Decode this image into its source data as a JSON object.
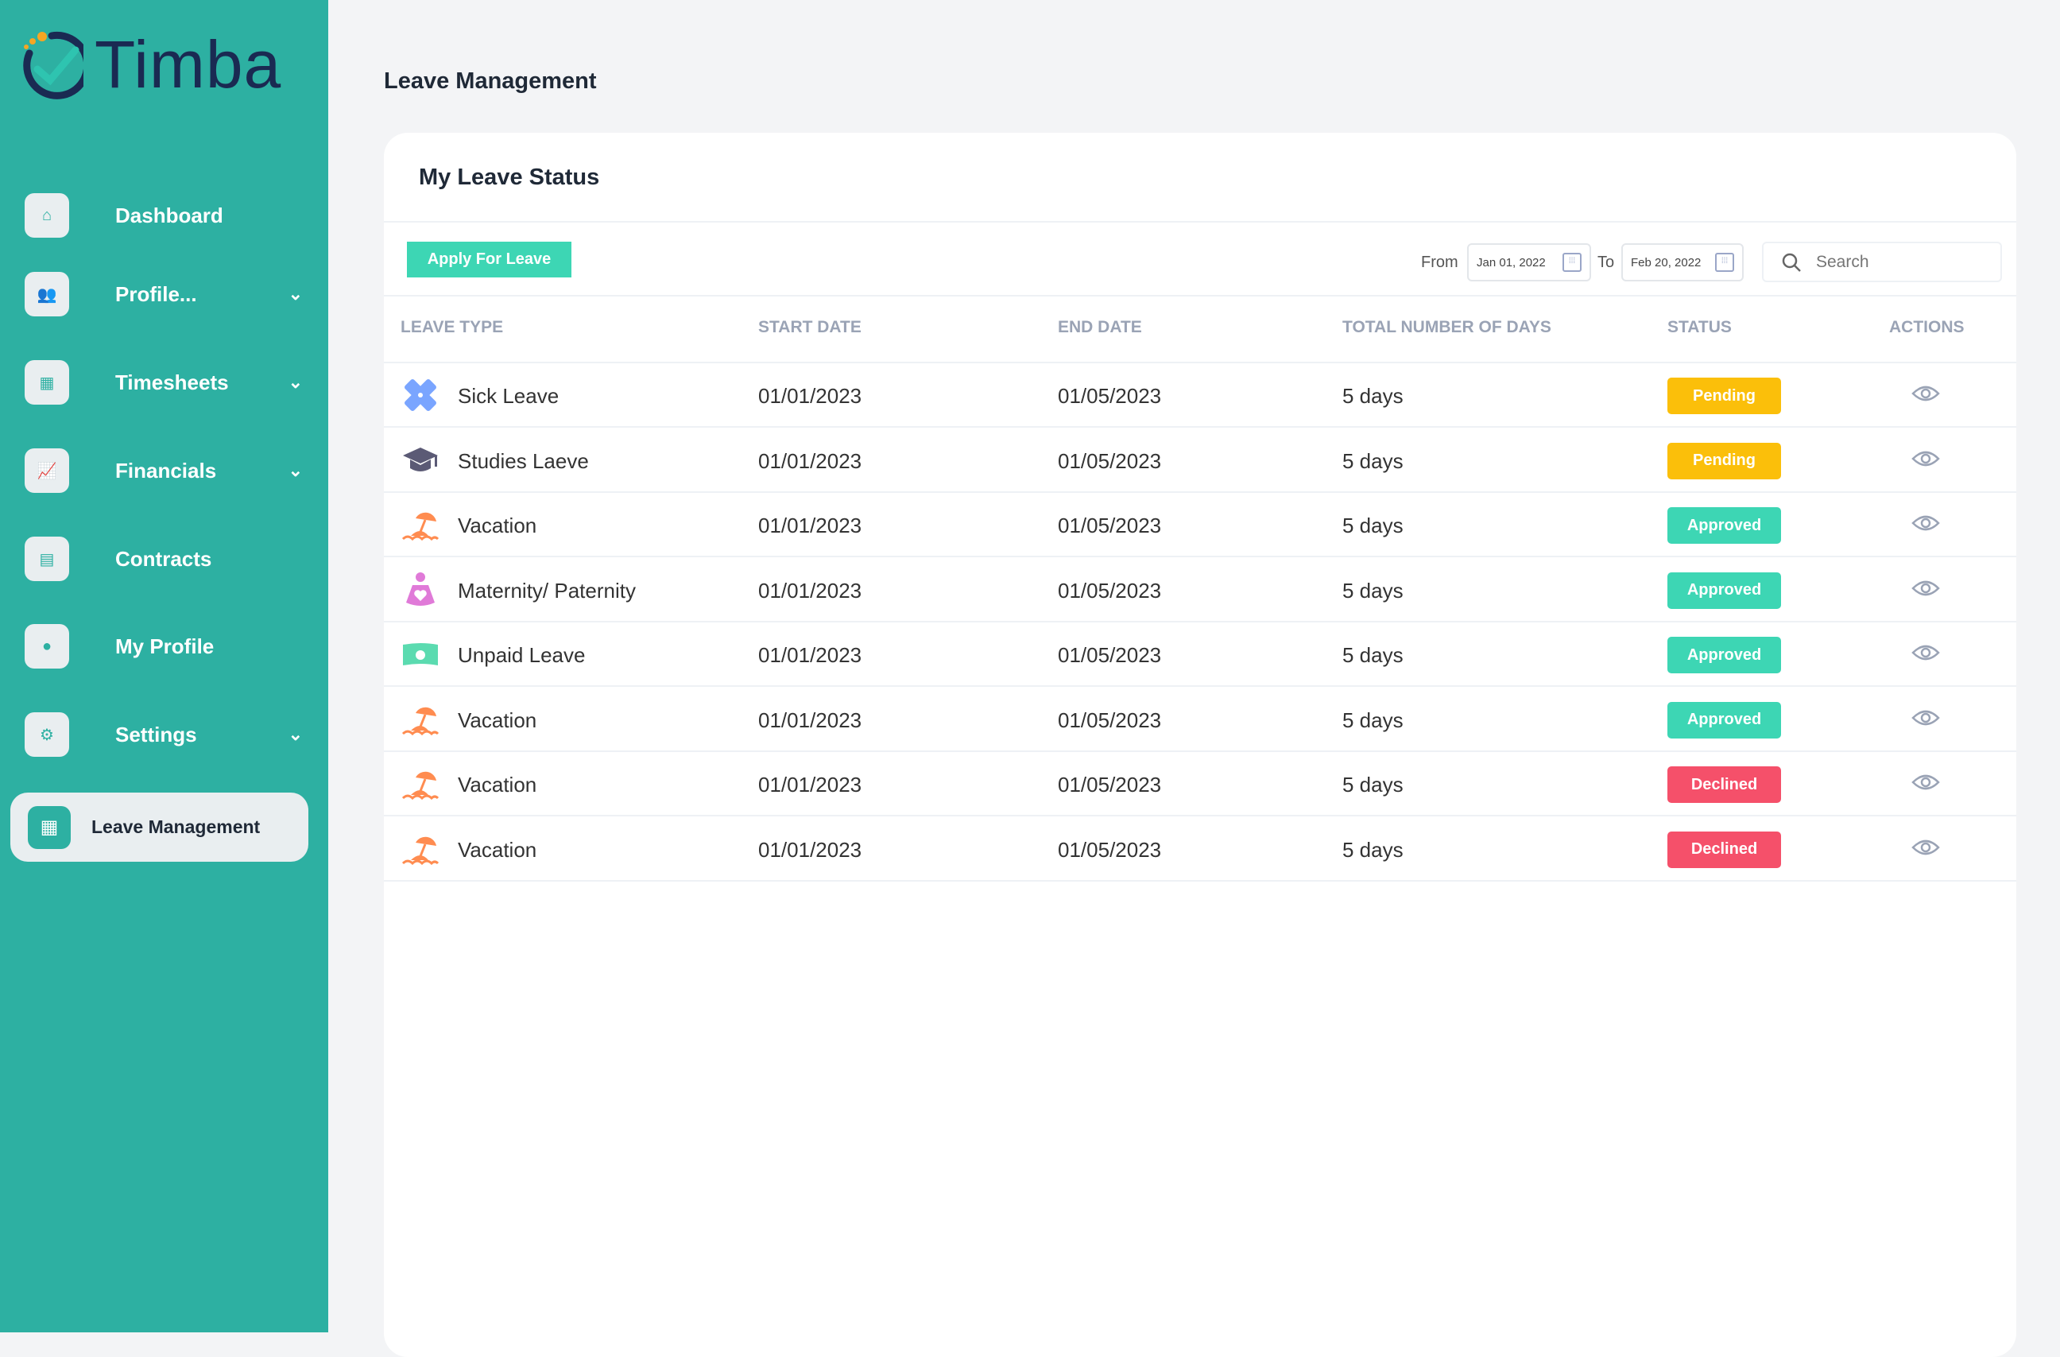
{
  "brand": {
    "name": "Timba"
  },
  "sidebar": {
    "items": [
      {
        "label": "Dashboard",
        "icon": "home-icon",
        "chevron": false
      },
      {
        "label": "Profile...",
        "icon": "users-icon",
        "chevron": true
      },
      {
        "label": "Timesheets",
        "icon": "calendar-icon",
        "chevron": true
      },
      {
        "label": "Financials",
        "icon": "chart-icon",
        "chevron": true
      },
      {
        "label": "Contracts",
        "icon": "document-icon",
        "chevron": false
      },
      {
        "label": "My Profile",
        "icon": "user-icon",
        "chevron": false
      },
      {
        "label": "Settings",
        "icon": "gear-icon",
        "chevron": true
      }
    ],
    "active": {
      "label": "Leave Management",
      "icon": "calendar-icon"
    }
  },
  "page": {
    "title": "Leave Management"
  },
  "card": {
    "title": "My Leave Status",
    "apply_label": "Apply For Leave",
    "from_label": "From",
    "from_value": "Jan 01, 2022",
    "to_label": "To",
    "to_value": "Feb 20, 2022",
    "search_placeholder": "Search"
  },
  "table": {
    "headers": [
      "LEAVE TYPE",
      "START DATE",
      "END DATE",
      "TOTAL NUMBER OF DAYS",
      "STATUS",
      "ACTIONS"
    ],
    "rows": [
      {
        "type": "Sick Leave",
        "icon": "bandage-icon",
        "start": "01/01/2023",
        "end": "01/05/2023",
        "days": "5 days",
        "status": "Pending"
      },
      {
        "type": "Studies Laeve",
        "icon": "graduation-cap-icon",
        "start": "01/01/2023",
        "end": "01/05/2023",
        "days": "5 days",
        "status": "Pending"
      },
      {
        "type": "Vacation",
        "icon": "beach-umbrella-icon",
        "start": "01/01/2023",
        "end": "01/05/2023",
        "days": "5 days",
        "status": "Approved"
      },
      {
        "type": "Maternity/ Paternity",
        "icon": "maternity-icon",
        "start": "01/01/2023",
        "end": "01/05/2023",
        "days": "5 days",
        "status": "Approved"
      },
      {
        "type": "Unpaid Leave",
        "icon": "money-icon",
        "start": "01/01/2023",
        "end": "01/05/2023",
        "days": "5 days",
        "status": "Approved"
      },
      {
        "type": "Vacation",
        "icon": "beach-umbrella-icon",
        "start": "01/01/2023",
        "end": "01/05/2023",
        "days": "5 days",
        "status": "Approved"
      },
      {
        "type": "Vacation",
        "icon": "beach-umbrella-icon",
        "start": "01/01/2023",
        "end": "01/05/2023",
        "days": "5 days",
        "status": "Declined"
      },
      {
        "type": "Vacation",
        "icon": "beach-umbrella-icon",
        "start": "01/01/2023",
        "end": "01/05/2023",
        "days": "5 days",
        "status": "Declined"
      }
    ]
  },
  "colors": {
    "sidebar": "#2db0a2",
    "pending": "#fbbf0a",
    "approved": "#3dd6b4",
    "declined": "#f5506a",
    "brand_dark": "#1a2a52"
  }
}
